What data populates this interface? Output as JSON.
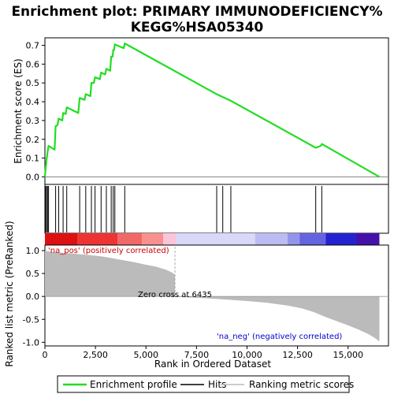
{
  "title_line1": "Enrichment plot: PRIMARY IMMUNODEFICIENCY%",
  "title_line2": "KEGG%HSA05340",
  "legend": {
    "profile": "Enrichment profile",
    "hits": "Hits",
    "metric": "Ranking metric scores"
  },
  "colors": {
    "profile": "#22dd22",
    "hits": "#000000",
    "metric_fill": "#bbbbbb",
    "zero_line": "#888888"
  },
  "chart_data": [
    {
      "type": "line",
      "ylabel": "Enrichment score (ES)",
      "xlim": [
        0,
        17000
      ],
      "ylim": [
        -0.04,
        0.74
      ],
      "yticks": [
        0.0,
        0.1,
        0.2,
        0.3,
        0.4,
        0.5,
        0.6,
        0.7
      ],
      "ytick_labels": [
        "0.0",
        "0.1",
        "0.2",
        "0.3",
        "0.4",
        "0.5",
        "0.6",
        "0.7"
      ],
      "grid": false,
      "points": [
        [
          0,
          0.0
        ],
        [
          30,
          0.04
        ],
        [
          80,
          0.09
        ],
        [
          130,
          0.13
        ],
        [
          180,
          0.165
        ],
        [
          480,
          0.145
        ],
        [
          530,
          0.27
        ],
        [
          620,
          0.275
        ],
        [
          680,
          0.31
        ],
        [
          860,
          0.3
        ],
        [
          900,
          0.34
        ],
        [
          1030,
          0.335
        ],
        [
          1080,
          0.37
        ],
        [
          1650,
          0.34
        ],
        [
          1720,
          0.42
        ],
        [
          1960,
          0.41
        ],
        [
          2020,
          0.44
        ],
        [
          2250,
          0.43
        ],
        [
          2300,
          0.5
        ],
        [
          2420,
          0.5
        ],
        [
          2480,
          0.53
        ],
        [
          2720,
          0.52
        ],
        [
          2780,
          0.555
        ],
        [
          2980,
          0.545
        ],
        [
          3040,
          0.575
        ],
        [
          3230,
          0.565
        ],
        [
          3280,
          0.64
        ],
        [
          3350,
          0.64
        ],
        [
          3380,
          0.675
        ],
        [
          3420,
          0.675
        ],
        [
          3460,
          0.705
        ],
        [
          3900,
          0.685
        ],
        [
          3950,
          0.71
        ],
        [
          8500,
          0.44
        ],
        [
          8800,
          0.425
        ],
        [
          9200,
          0.405
        ],
        [
          13400,
          0.155
        ],
        [
          13650,
          0.165
        ],
        [
          13700,
          0.175
        ],
        [
          16550,
          0.0
        ]
      ]
    },
    {
      "type": "rug",
      "name": "Hits",
      "x": [
        30,
        80,
        130,
        180,
        530,
        680,
        900,
        1080,
        1720,
        2020,
        2300,
        2480,
        2780,
        3040,
        3280,
        3380,
        3460,
        3950,
        8500,
        8800,
        9200,
        13400,
        13700
      ]
    },
    {
      "type": "area",
      "ylabel": "Ranked list metric (PreRanked)",
      "xlabel": "Rank in Ordered Dataset",
      "xlim": [
        0,
        17000
      ],
      "ylim": [
        -1.08,
        1.12
      ],
      "xticks": [
        0,
        2500,
        5000,
        7500,
        10000,
        12500,
        15000
      ],
      "xtick_labels": [
        "0",
        "2,500",
        "5,000",
        "7,500",
        "10,000",
        "12,500",
        "15,000"
      ],
      "yticks": [
        -1.0,
        -0.5,
        0.0,
        0.5,
        1.0
      ],
      "ytick_labels": [
        "-1.0",
        "-0.5",
        "0.0",
        "0.5",
        "1.0"
      ],
      "grid": false,
      "points": [
        [
          0,
          1.0
        ],
        [
          200,
          0.98
        ],
        [
          600,
          0.96
        ],
        [
          1000,
          0.95
        ],
        [
          1500,
          0.93
        ],
        [
          2000,
          0.91
        ],
        [
          2500,
          0.89
        ],
        [
          3000,
          0.86
        ],
        [
          3500,
          0.82
        ],
        [
          4000,
          0.78
        ],
        [
          4500,
          0.74
        ],
        [
          5000,
          0.69
        ],
        [
          5500,
          0.65
        ],
        [
          6000,
          0.58
        ],
        [
          6300,
          0.52
        ],
        [
          6435,
          0.47
        ],
        [
          6440,
          0.0
        ],
        [
          6450,
          -0.01
        ],
        [
          7000,
          -0.02
        ],
        [
          8000,
          -0.04
        ],
        [
          9000,
          -0.07
        ],
        [
          10000,
          -0.1
        ],
        [
          11000,
          -0.14
        ],
        [
          12000,
          -0.2
        ],
        [
          12700,
          -0.26
        ],
        [
          13300,
          -0.34
        ],
        [
          13900,
          -0.45
        ],
        [
          14500,
          -0.55
        ],
        [
          15000,
          -0.63
        ],
        [
          15500,
          -0.72
        ],
        [
          16000,
          -0.82
        ],
        [
          16300,
          -0.9
        ],
        [
          16550,
          -0.98
        ]
      ],
      "zero_cross_label": "Zero cross at 6435",
      "pos_label": "'na_pos' (positively correlated)",
      "neg_label": "'na_neg' (negatively correlated)"
    },
    {
      "type": "heatmap",
      "name": "rank colour bar",
      "bands": [
        {
          "from": 0,
          "to": 1600,
          "color": "#dd1111"
        },
        {
          "from": 1600,
          "to": 3600,
          "color": "#ee3333"
        },
        {
          "from": 3600,
          "to": 4800,
          "color": "#f26868"
        },
        {
          "from": 4800,
          "to": 5850,
          "color": "#f89090"
        },
        {
          "from": 5850,
          "to": 6500,
          "color": "#fcc4d8"
        },
        {
          "from": 6500,
          "to": 10400,
          "color": "#d8d8f8"
        },
        {
          "from": 10400,
          "to": 12000,
          "color": "#bcbcf2"
        },
        {
          "from": 12000,
          "to": 12600,
          "color": "#9494ea"
        },
        {
          "from": 12600,
          "to": 13900,
          "color": "#6464e0"
        },
        {
          "from": 13900,
          "to": 15400,
          "color": "#2222d0"
        },
        {
          "from": 15400,
          "to": 16550,
          "color": "#4411aa"
        }
      ]
    }
  ]
}
